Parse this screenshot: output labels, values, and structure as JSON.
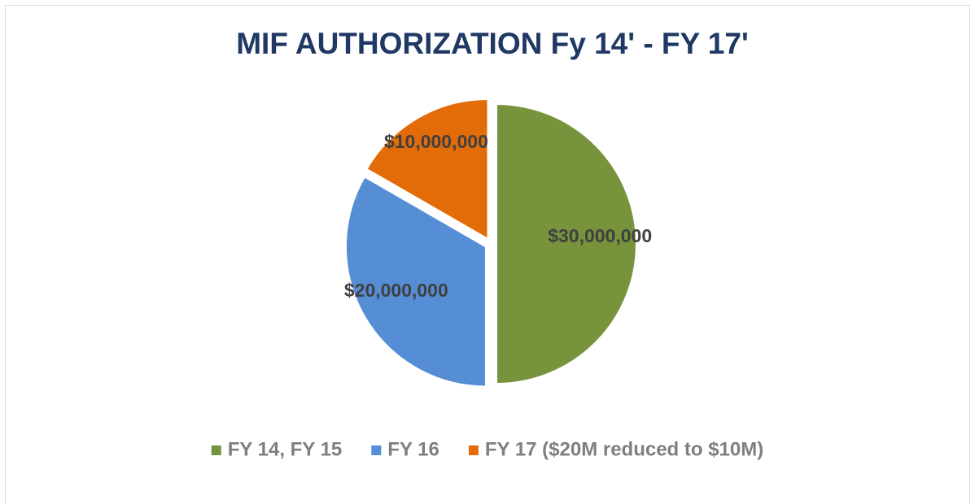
{
  "chart_data": {
    "type": "pie",
    "title": "MIF AUTHORIZATION Fy 14' - FY 17'",
    "categories": [
      "FY 14, FY 15",
      "FY 16",
      "FY 17 ($20M reduced to $10M)"
    ],
    "values": [
      30000000,
      20000000,
      10000000
    ],
    "value_labels": [
      "$30,000,000",
      "$20,000,000",
      "$10,000,000"
    ],
    "colors": [
      "#77933c",
      "#558ed5",
      "#e36c09"
    ],
    "legend": "bottom"
  }
}
